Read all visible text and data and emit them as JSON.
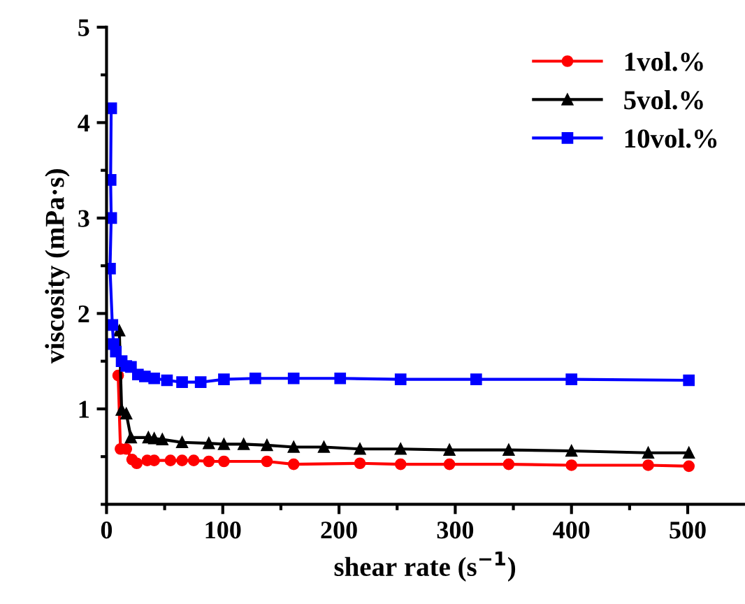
{
  "chart_data": {
    "type": "line",
    "xlabel": "shear rate (s$^{−1}$)",
    "ylabel": "viscosity (mPa·s)",
    "xlim": [
      0,
      548
    ],
    "ylim": [
      0,
      5
    ],
    "xticks": [
      0,
      100,
      200,
      300,
      400,
      500
    ],
    "yticks": [
      1,
      2,
      3,
      4,
      5
    ],
    "grid": false,
    "legend": "top right",
    "series": [
      {
        "name": "1vol.%",
        "color": "#ff0000",
        "marker": "circle",
        "x": [
          10,
          12,
          17,
          22,
          26,
          35,
          41,
          55,
          65,
          75,
          88,
          101,
          138,
          161,
          218,
          253,
          295,
          346,
          400,
          466,
          501
        ],
        "values": [
          1.35,
          0.58,
          0.58,
          0.47,
          0.43,
          0.46,
          0.46,
          0.46,
          0.46,
          0.46,
          0.45,
          0.45,
          0.45,
          0.42,
          0.43,
          0.42,
          0.42,
          0.42,
          0.41,
          0.41,
          0.4
        ]
      },
      {
        "name": "5vol.%",
        "color": "#000000",
        "marker": "triangle",
        "x": [
          11,
          13,
          17,
          21,
          36,
          41,
          48,
          65,
          88,
          101,
          118,
          138,
          161,
          187,
          218,
          253,
          295,
          346,
          400,
          466,
          501
        ],
        "values": [
          1.82,
          0.99,
          0.95,
          0.7,
          0.7,
          0.69,
          0.68,
          0.65,
          0.64,
          0.63,
          0.63,
          0.62,
          0.6,
          0.6,
          0.58,
          0.58,
          0.57,
          0.57,
          0.56,
          0.54,
          0.54
        ]
      },
      {
        "name": "10vol.%",
        "color": "#0000ff",
        "marker": "square",
        "x": [
          4,
          3.5,
          4,
          3,
          5,
          6,
          8,
          13,
          17,
          21,
          27,
          33,
          41,
          52,
          65,
          81,
          101,
          128,
          161,
          201,
          253,
          318,
          400,
          501
        ],
        "values": [
          4.15,
          3.4,
          3.0,
          2.47,
          1.88,
          1.68,
          1.6,
          1.5,
          1.45,
          1.44,
          1.36,
          1.34,
          1.32,
          1.3,
          1.28,
          1.28,
          1.31,
          1.32,
          1.32,
          1.32,
          1.31,
          1.31,
          1.31,
          1.3
        ]
      }
    ]
  }
}
